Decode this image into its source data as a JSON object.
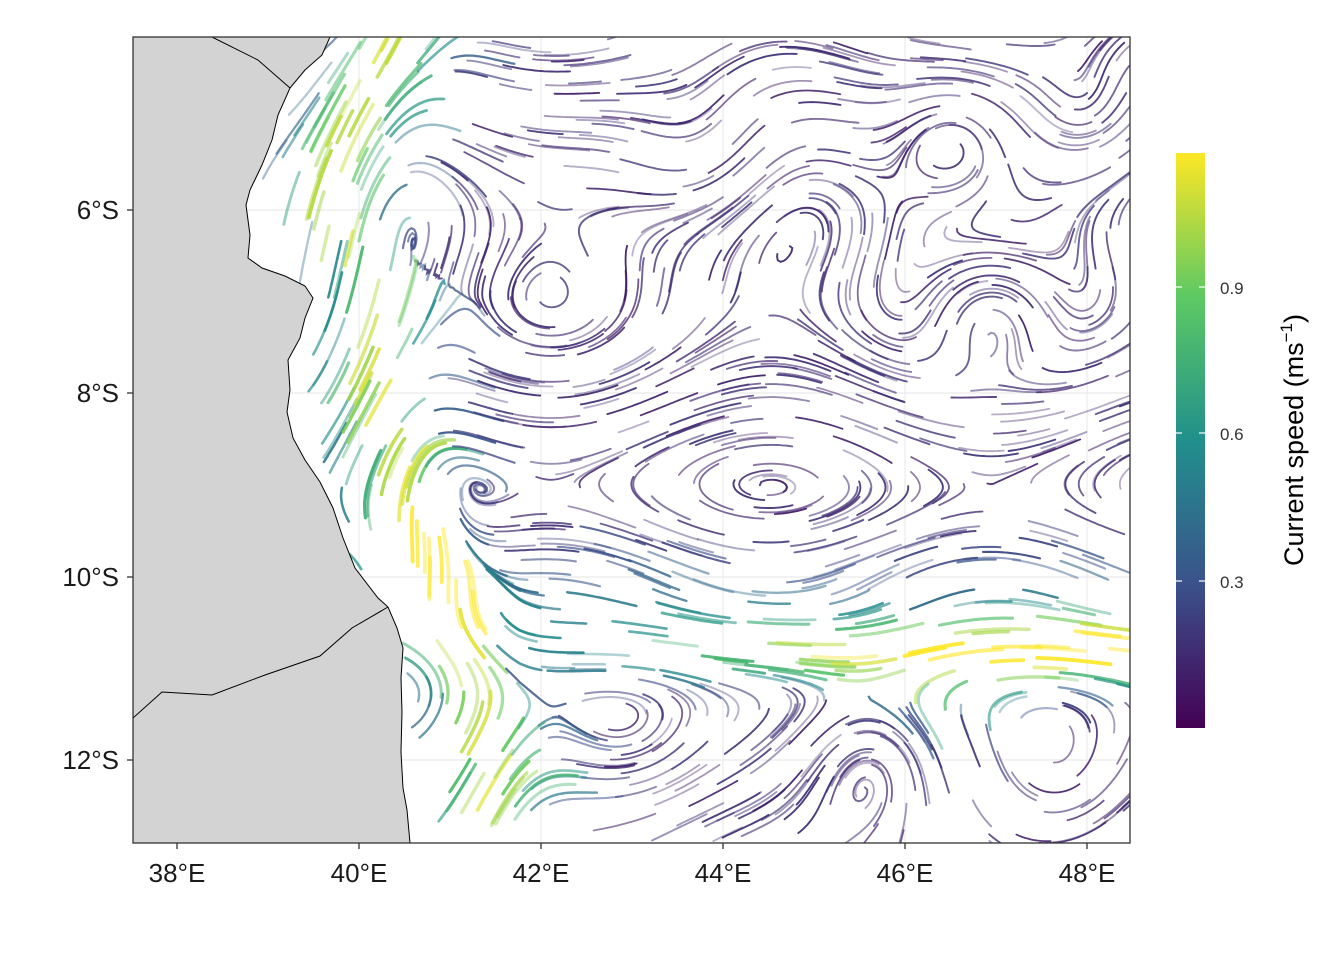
{
  "map": {
    "x_ticks": [
      "38°E",
      "40°E",
      "42°E",
      "44°E",
      "46°E",
      "48°E"
    ],
    "y_ticks": [
      "6°S",
      "8°S",
      "10°S",
      "12°S"
    ],
    "colors": {
      "land": "#d3d3d3",
      "coastline": "#000000",
      "grid": "#ebebeb",
      "panel_border": "#333333"
    }
  },
  "colorbar": {
    "title_main": "Current speed (ms",
    "title_sup": "−1",
    "title_close": ")",
    "ticks": [
      "0.3",
      "0.6",
      "0.9"
    ],
    "palette": "viridis",
    "color_stops": [
      "#440154",
      "#3b528b",
      "#21908c",
      "#5dc963",
      "#fde725"
    ]
  }
}
